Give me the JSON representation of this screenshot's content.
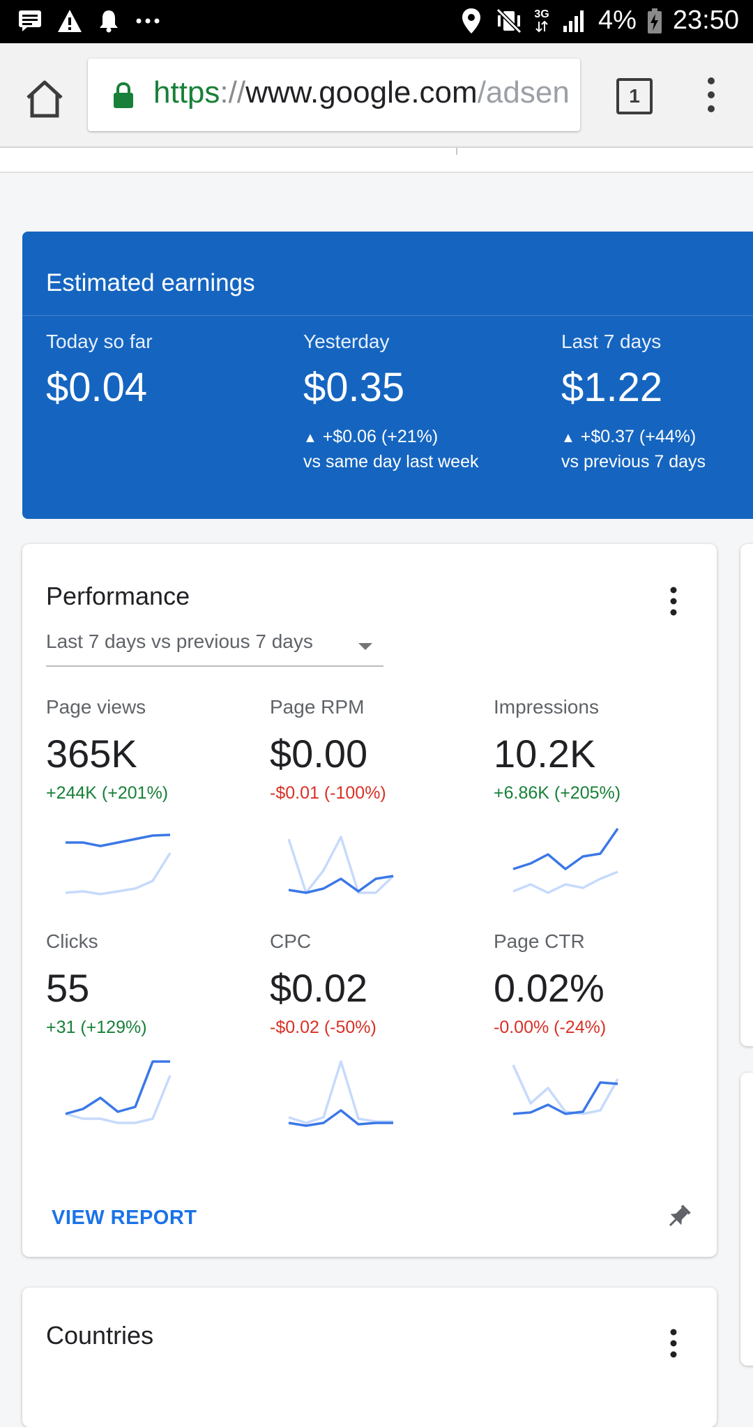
{
  "status_bar": {
    "left_icons": [
      "message-icon",
      "warning-icon",
      "notification-bell-icon",
      "more-icon"
    ],
    "right_icons": [
      "location-icon",
      "mute-vibrate-icon",
      "network-3g-icon",
      "signal-icon",
      "battery-charging-icon"
    ],
    "network": "3G",
    "battery": "4%",
    "time": "23:50"
  },
  "browser": {
    "url_scheme": "https",
    "url_separator": "://",
    "url_host": "www.google.com",
    "url_path": "/adsen",
    "tab_count": "1"
  },
  "earnings": {
    "title": "Estimated earnings",
    "columns": [
      {
        "label": "Today so far",
        "value": "$0.04",
        "delta": "",
        "compare": ""
      },
      {
        "label": "Yesterday",
        "value": "$0.35",
        "delta": "+$0.06 (+21%)",
        "compare": "vs same day last week"
      },
      {
        "label": "Last 7 days",
        "value": "$1.22",
        "delta": "+$0.37 (+44%)",
        "compare": "vs previous 7 days"
      }
    ]
  },
  "performance": {
    "title": "Performance",
    "range": "Last 7 days vs previous 7 days",
    "metrics": [
      {
        "label": "Page views",
        "value": "365K",
        "delta": "+244K (+201%)",
        "trend": "positive",
        "current": [
          0.2,
          0.2,
          0.25,
          0.2,
          0.15,
          0.1,
          0.09
        ],
        "previous": [
          0.92,
          0.9,
          0.94,
          0.9,
          0.86,
          0.75,
          0.35
        ]
      },
      {
        "label": "Page RPM",
        "value": "$0.00",
        "delta": "-$0.01 (-100%)",
        "trend": "negative",
        "current": [
          0.88,
          0.92,
          0.86,
          0.72,
          0.9,
          0.72,
          0.68
        ],
        "previous": [
          0.15,
          0.92,
          0.6,
          0.12,
          0.92,
          0.92,
          0.68
        ]
      },
      {
        "label": "Impressions",
        "value": "10.2K",
        "delta": "+6.86K (+205%)",
        "trend": "positive",
        "current": [
          0.58,
          0.5,
          0.37,
          0.58,
          0.4,
          0.36,
          0.0
        ],
        "previous": [
          0.9,
          0.8,
          0.92,
          0.8,
          0.85,
          0.72,
          0.62
        ]
      }
    ],
    "metrics2": [
      {
        "label": "Clicks",
        "value": "55",
        "delta": "+31 (+129%)",
        "trend": "positive",
        "current": [
          0.75,
          0.68,
          0.52,
          0.72,
          0.65,
          0.0,
          0.0
        ],
        "previous": [
          0.75,
          0.82,
          0.82,
          0.88,
          0.88,
          0.82,
          0.2
        ]
      },
      {
        "label": "CPC",
        "value": "$0.02",
        "delta": "-$0.02 (-50%)",
        "trend": "negative",
        "current": [
          0.88,
          0.92,
          0.88,
          0.7,
          0.9,
          0.88,
          0.88
        ],
        "previous": [
          0.8,
          0.88,
          0.8,
          0.0,
          0.82,
          0.86,
          0.86
        ]
      },
      {
        "label": "Page CTR",
        "value": "0.02%",
        "delta": "-0.00% (-24%)",
        "trend": "negative",
        "current": [
          0.75,
          0.73,
          0.62,
          0.75,
          0.72,
          0.3,
          0.32
        ],
        "previous": [
          0.05,
          0.6,
          0.38,
          0.72,
          0.75,
          0.7,
          0.25
        ]
      }
    ],
    "view_report": "VIEW REPORT"
  },
  "countries": {
    "title": "Countries"
  },
  "colors": {
    "earnings_bg": "#1565c0",
    "current_line": "#3b78e7",
    "previous_line": "#c6dafc",
    "positive": "#188038",
    "negative": "#d93025"
  }
}
